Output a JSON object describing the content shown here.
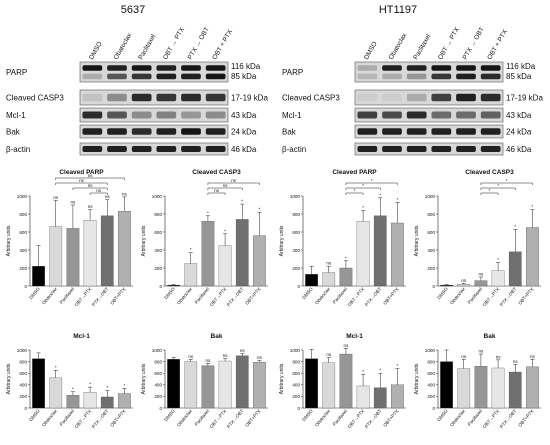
{
  "blots": [
    {
      "cell_line": "5637",
      "lanes": [
        "DMSO",
        "Obatoclax",
        "Paclitaxel",
        "OBT → PTX",
        "PTX → OBT",
        "OBT + PTX"
      ],
      "rows": [
        {
          "label": "PARP",
          "sizes": [
            "116 kDa",
            "85 kDa"
          ]
        },
        {
          "label": "Cleaved CASP3",
          "sizes": [
            "17-19 kDa"
          ]
        },
        {
          "label": "Mcl-1",
          "sizes": [
            "43 kDa"
          ]
        },
        {
          "label": "Bak",
          "sizes": [
            "24 kDa"
          ]
        },
        {
          "label": "β-actin",
          "sizes": [
            "46 kDa"
          ]
        }
      ]
    },
    {
      "cell_line": "HT1197",
      "lanes": [
        "DMSO",
        "Obatoclax",
        "Paclitaxel",
        "OBT → PTX",
        "PTX → OBT",
        "OBT + PTX"
      ],
      "rows": [
        {
          "label": "PARP",
          "sizes": [
            "116 kDa",
            "85 kDa"
          ]
        },
        {
          "label": "Cleaved CASP3",
          "sizes": [
            "17-19 kDa"
          ]
        },
        {
          "label": "Mcl-1",
          "sizes": [
            "43 kDa"
          ]
        },
        {
          "label": "Bak",
          "sizes": [
            "24 kDa"
          ]
        },
        {
          "label": "β-actin",
          "sizes": [
            "46 kDa"
          ]
        }
      ]
    }
  ],
  "chart_data": [
    {
      "type": "bar",
      "title": "Cleaved PARP",
      "ylabel": "Arbitrary units",
      "ylim": [
        0,
        1000
      ],
      "yticks": [
        0,
        200,
        400,
        600,
        800,
        1000
      ],
      "categories": [
        "DMSO",
        "Obatoclax",
        "Paclitaxel",
        "OBT→PTX",
        "PTX→OBT",
        "OBT+PTX"
      ],
      "values": [
        220,
        660,
        640,
        730,
        780,
        830
      ],
      "errors": [
        230,
        290,
        260,
        120,
        180,
        160
      ],
      "point_labels": [
        "",
        "ns",
        "ns",
        "ns",
        "ns",
        "ns"
      ],
      "brackets": [
        {
          "from": 1,
          "to": 5,
          "label": "ns"
        },
        {
          "from": 1,
          "to": 4,
          "label": "ns"
        },
        {
          "from": 2,
          "to": 4,
          "label": "ns"
        },
        {
          "from": 3,
          "to": 4,
          "label": "ns"
        }
      ],
      "colors": [
        "#000000",
        "#d9d9d9",
        "#969696",
        "#e6e6e6",
        "#707070",
        "#b0b0b0"
      ]
    },
    {
      "type": "bar",
      "title": "Cleaved CASP3",
      "ylabel": "Arbitrary units",
      "ylim": [
        0,
        1000
      ],
      "yticks": [
        0,
        200,
        400,
        600,
        800,
        1000
      ],
      "categories": [
        "DMSO",
        "Obatoclax",
        "Paclitaxel",
        "OBT→PTX",
        "PTX→OBT",
        "OBT+PTX"
      ],
      "values": [
        10,
        250,
        720,
        450,
        740,
        560
      ],
      "errors": [
        5,
        120,
        60,
        130,
        170,
        260
      ],
      "point_labels": [
        "",
        "*",
        "*",
        "*",
        "*",
        "*"
      ],
      "brackets": [
        {
          "from": 2,
          "to": 5,
          "label": "ns"
        },
        {
          "from": 2,
          "to": 4,
          "label": "ns"
        },
        {
          "from": 2,
          "to": 3,
          "label": "ns"
        }
      ],
      "colors": [
        "#000000",
        "#d9d9d9",
        "#969696",
        "#e6e6e6",
        "#707070",
        "#b0b0b0"
      ]
    },
    {
      "type": "bar",
      "title": "Cleaved PARP",
      "ylabel": "Arbitrary units",
      "ylim": [
        0,
        1000
      ],
      "yticks": [
        0,
        200,
        400,
        600,
        800,
        1000
      ],
      "categories": [
        "DMSO",
        "Obatoclax",
        "Paclitaxel",
        "OBT→PTX",
        "PTX→OBT",
        "OBT+PTX"
      ],
      "values": [
        130,
        150,
        200,
        720,
        780,
        700
      ],
      "errors": [
        90,
        70,
        80,
        120,
        200,
        230
      ],
      "point_labels": [
        "",
        "ns",
        "*",
        "*",
        "*",
        "*"
      ],
      "brackets": [
        {
          "from": 2,
          "to": 5,
          "label": "*"
        },
        {
          "from": 2,
          "to": 4,
          "label": "*"
        },
        {
          "from": 2,
          "to": 3,
          "label": "*"
        }
      ],
      "colors": [
        "#000000",
        "#d9d9d9",
        "#969696",
        "#e6e6e6",
        "#707070",
        "#b0b0b0"
      ]
    },
    {
      "type": "bar",
      "title": "Cleaved CASP3",
      "ylabel": "Arbitrary units",
      "ylim": [
        0,
        1000
      ],
      "yticks": [
        0,
        200,
        400,
        600,
        800,
        1000
      ],
      "categories": [
        "DMSO",
        "Obatoclax",
        "Paclitaxel",
        "OBT→PTX",
        "PTX→OBT",
        "OBT+PTX"
      ],
      "values": [
        10,
        20,
        60,
        170,
        380,
        650
      ],
      "errors": [
        5,
        10,
        40,
        90,
        250,
        200
      ],
      "point_labels": [
        "",
        "ns",
        "ns",
        "*",
        "*",
        "*"
      ],
      "brackets": [
        {
          "from": 2,
          "to": 5,
          "label": "*"
        },
        {
          "from": 2,
          "to": 4,
          "label": "*"
        },
        {
          "from": 2,
          "to": 3,
          "label": "*"
        }
      ],
      "colors": [
        "#000000",
        "#d9d9d9",
        "#969696",
        "#e6e6e6",
        "#707070",
        "#b0b0b0"
      ]
    },
    {
      "type": "bar",
      "title": "Mcl-1",
      "ylabel": "Arbitrary units",
      "ylim": [
        0,
        1000
      ],
      "yticks": [
        0,
        200,
        400,
        600,
        800,
        1000
      ],
      "categories": [
        "DMSO",
        "Obatoclax",
        "Paclitaxel",
        "OBT→PTX",
        "PTX→OBT",
        "OBT+PTX"
      ],
      "values": [
        850,
        520,
        220,
        270,
        190,
        250
      ],
      "errors": [
        100,
        130,
        60,
        90,
        110,
        90
      ],
      "point_labels": [
        "",
        "*",
        "*",
        "*",
        "*",
        "*"
      ],
      "brackets": [],
      "colors": [
        "#000000",
        "#d9d9d9",
        "#969696",
        "#e6e6e6",
        "#707070",
        "#b0b0b0"
      ]
    },
    {
      "type": "bar",
      "title": "Bak",
      "ylabel": "Arbitrary units",
      "ylim": [
        0,
        1000
      ],
      "yticks": [
        0,
        200,
        400,
        600,
        800,
        1000
      ],
      "categories": [
        "DMSO",
        "Obatoclax",
        "Paclitaxel",
        "OBT→PTX",
        "PTX→OBT",
        "OBT+PTX"
      ],
      "values": [
        840,
        800,
        730,
        810,
        900,
        790
      ],
      "errors": [
        30,
        40,
        40,
        40,
        40,
        30
      ],
      "point_labels": [
        "",
        "ns",
        "ns",
        "ns",
        "ns",
        "ns"
      ],
      "brackets": [],
      "colors": [
        "#000000",
        "#d9d9d9",
        "#969696",
        "#e6e6e6",
        "#707070",
        "#b0b0b0"
      ]
    },
    {
      "type": "bar",
      "title": "Mcl-1",
      "ylabel": "Arbitrary units",
      "ylim": [
        0,
        1000
      ],
      "yticks": [
        0,
        200,
        400,
        600,
        800,
        1000
      ],
      "categories": [
        "DMSO",
        "Obatoclax",
        "Paclitaxel",
        "OBT→PTX",
        "PTX→OBT",
        "OBT+PTX"
      ],
      "values": [
        850,
        780,
        930,
        380,
        350,
        400
      ],
      "errors": [
        160,
        90,
        100,
        200,
        250,
        280
      ],
      "point_labels": [
        "",
        "ns",
        "ns",
        "*",
        "*",
        "*"
      ],
      "brackets": [],
      "colors": [
        "#000000",
        "#d9d9d9",
        "#969696",
        "#e6e6e6",
        "#707070",
        "#b0b0b0"
      ]
    },
    {
      "type": "bar",
      "title": "Bak",
      "ylabel": "Arbitrary units",
      "ylim": [
        0,
        1000
      ],
      "yticks": [
        0,
        200,
        400,
        600,
        800,
        1000
      ],
      "categories": [
        "DMSO",
        "Obatoclax",
        "Paclitaxel",
        "OBT→PTX",
        "PTX→OBT",
        "OBT+PTX"
      ],
      "values": [
        800,
        680,
        720,
        690,
        620,
        710
      ],
      "errors": [
        200,
        160,
        210,
        140,
        130,
        130
      ],
      "point_labels": [
        "",
        "ns",
        "ns",
        "ns",
        "ns",
        "ns"
      ],
      "brackets": [],
      "colors": [
        "#000000",
        "#d9d9d9",
        "#969696",
        "#e6e6e6",
        "#707070",
        "#b0b0b0"
      ]
    }
  ]
}
